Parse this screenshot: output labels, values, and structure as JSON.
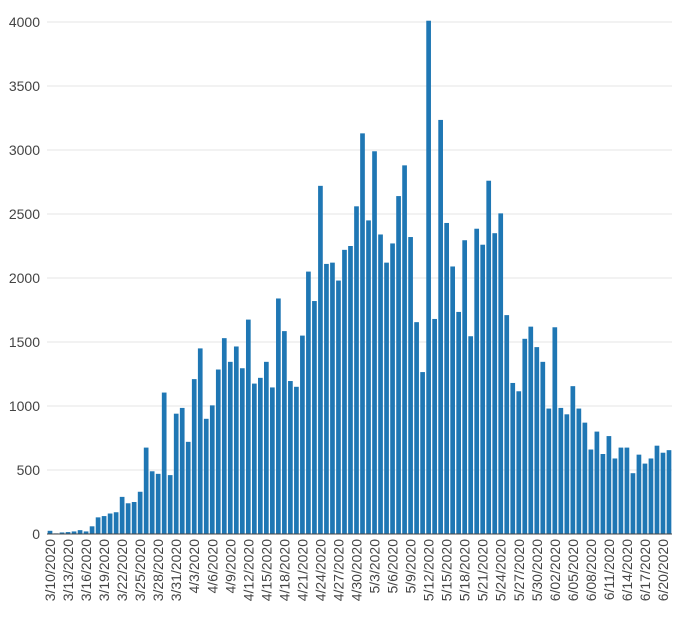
{
  "chart_data": {
    "type": "bar",
    "title": "",
    "xlabel": "",
    "ylabel": "",
    "ylim": [
      0,
      4000
    ],
    "yticks": [
      0,
      500,
      1000,
      1500,
      2000,
      2500,
      3000,
      3500,
      4000
    ],
    "grid": true,
    "legend": "none",
    "bar_color": "#1f77b4",
    "xtick_labels": [
      "3/10/2020",
      "3/13/2020",
      "3/16/2020",
      "3/19/2020",
      "3/22/2020",
      "3/25/2020",
      "3/28/2020",
      "3/31/2020",
      "4/3/2020",
      "4/6/2020",
      "4/9/2020",
      "4/12/2020",
      "4/15/2020",
      "4/18/2020",
      "4/21/2020",
      "4/24/2020",
      "4/27/2020",
      "4/30/2020",
      "5/3/2020",
      "5/6/2020",
      "5/9/2020",
      "5/12/2020",
      "5/15/2020",
      "5/18/2020",
      "5/21/2020",
      "5/24/2020",
      "5/27/2020",
      "5/30/2020",
      "6/02/2020",
      "6/05/2020",
      "6/08/2020",
      "6/11/2020",
      "6/14/2020",
      "6/17/2020",
      "6/20/2020"
    ],
    "categories": [
      "3/10/2020",
      "3/11/2020",
      "3/12/2020",
      "3/13/2020",
      "3/14/2020",
      "3/15/2020",
      "3/16/2020",
      "3/17/2020",
      "3/18/2020",
      "3/19/2020",
      "3/20/2020",
      "3/21/2020",
      "3/22/2020",
      "3/23/2020",
      "3/24/2020",
      "3/25/2020",
      "3/26/2020",
      "3/27/2020",
      "3/28/2020",
      "3/29/2020",
      "3/30/2020",
      "3/31/2020",
      "4/1/2020",
      "4/2/2020",
      "4/3/2020",
      "4/4/2020",
      "4/5/2020",
      "4/6/2020",
      "4/7/2020",
      "4/8/2020",
      "4/9/2020",
      "4/10/2020",
      "4/11/2020",
      "4/12/2020",
      "4/13/2020",
      "4/14/2020",
      "4/15/2020",
      "4/16/2020",
      "4/17/2020",
      "4/18/2020",
      "4/19/2020",
      "4/20/2020",
      "4/21/2020",
      "4/22/2020",
      "4/23/2020",
      "4/24/2020",
      "4/25/2020",
      "4/26/2020",
      "4/27/2020",
      "4/28/2020",
      "4/29/2020",
      "4/30/2020",
      "5/1/2020",
      "5/2/2020",
      "5/3/2020",
      "5/4/2020",
      "5/5/2020",
      "5/6/2020",
      "5/7/2020",
      "5/8/2020",
      "5/9/2020",
      "5/10/2020",
      "5/11/2020",
      "5/12/2020",
      "5/13/2020",
      "5/14/2020",
      "5/15/2020",
      "5/16/2020",
      "5/17/2020",
      "5/18/2020",
      "5/19/2020",
      "5/20/2020",
      "5/21/2020",
      "5/22/2020",
      "5/23/2020",
      "5/24/2020",
      "5/25/2020",
      "5/26/2020",
      "5/27/2020",
      "5/28/2020",
      "5/29/2020",
      "5/30/2020",
      "5/31/2020",
      "6/01/2020",
      "6/02/2020",
      "6/03/2020",
      "6/04/2020",
      "6/05/2020",
      "6/06/2020",
      "6/07/2020",
      "6/08/2020",
      "6/09/2020",
      "6/10/2020",
      "6/11/2020",
      "6/12/2020",
      "6/13/2020",
      "6/14/2020",
      "6/15/2020",
      "6/16/2020",
      "6/17/2020",
      "6/18/2020",
      "6/19/2020",
      "6/20/2020",
      "6/21/2020"
    ],
    "values": [
      25,
      5,
      12,
      15,
      20,
      30,
      20,
      60,
      130,
      140,
      160,
      170,
      290,
      240,
      250,
      330,
      675,
      490,
      470,
      1105,
      460,
      940,
      985,
      720,
      1210,
      1450,
      900,
      1005,
      1285,
      1530,
      1345,
      1465,
      1295,
      1675,
      1175,
      1220,
      1345,
      1145,
      1840,
      1585,
      1195,
      1150,
      1550,
      2050,
      1820,
      2720,
      2110,
      2120,
      1980,
      2220,
      2250,
      2560,
      3130,
      2450,
      2990,
      2340,
      2120,
      2270,
      2640,
      2880,
      2320,
      1655,
      1265,
      4010,
      1680,
      3235,
      2430,
      2090,
      1735,
      2295,
      1545,
      2385,
      2260,
      2760,
      2350,
      2505,
      1710,
      1180,
      1115,
      1525,
      1620,
      1460,
      1345,
      980,
      1615,
      985,
      935,
      1155,
      980,
      870,
      660,
      800,
      625,
      765,
      590,
      675,
      675,
      475,
      620,
      550,
      590,
      690,
      635,
      655
    ]
  }
}
